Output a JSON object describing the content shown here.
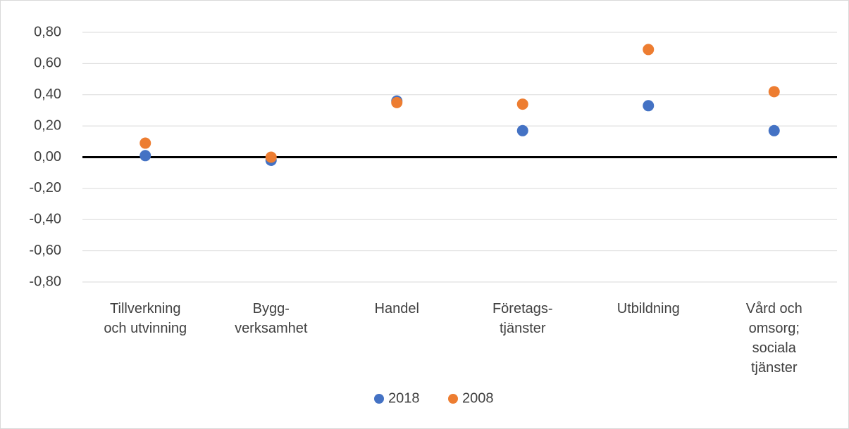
{
  "chart_data": {
    "type": "scatter",
    "categories": [
      "Tillverkning\noch utvinning",
      "Bygg-\nverksamhet",
      "Handel",
      "Företags-\ntjänster",
      "Utbildning",
      "Vård och\nomsorg;\nsociala\ntjänster"
    ],
    "series": [
      {
        "name": "2018",
        "color": "#4472c4",
        "values": [
          0.01,
          -0.02,
          0.36,
          0.17,
          0.33,
          0.17
        ]
      },
      {
        "name": "2008",
        "color": "#ed7d31",
        "values": [
          0.09,
          0.0,
          0.35,
          0.34,
          0.69,
          0.42
        ]
      }
    ],
    "ylim": [
      -0.8,
      0.8
    ],
    "yticks": [
      {
        "value": -0.8,
        "label": "-0,80"
      },
      {
        "value": -0.6,
        "label": "-0,60"
      },
      {
        "value": -0.4,
        "label": "-0,40"
      },
      {
        "value": -0.2,
        "label": "-0,20"
      },
      {
        "value": 0,
        "label": "0,00"
      },
      {
        "value": 0.2,
        "label": "0,20"
      },
      {
        "value": 0.4,
        "label": "0,40"
      },
      {
        "value": 0.6,
        "label": "0,60"
      },
      {
        "value": 0.8,
        "label": "0,80"
      }
    ],
    "grid": true,
    "legend": "bottom"
  }
}
